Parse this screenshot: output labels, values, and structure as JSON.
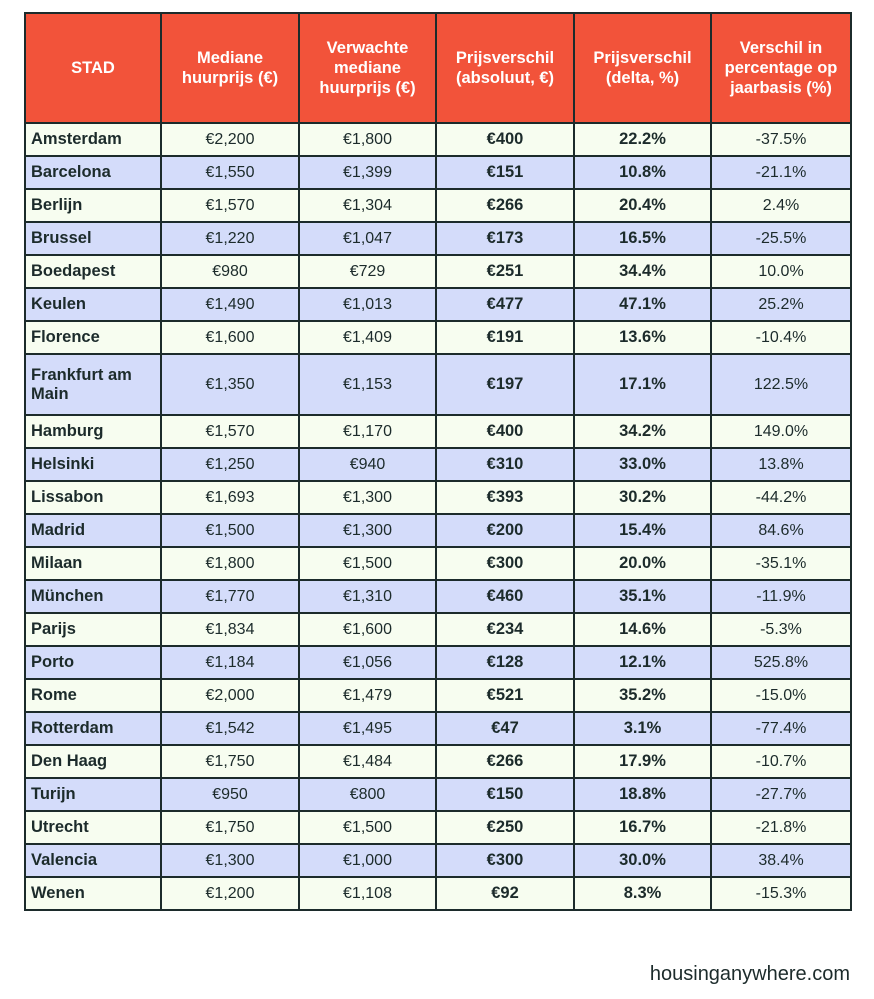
{
  "table": {
    "headers": [
      "STAD",
      "Mediane huurprijs (€)",
      "Verwachte mediane huurprijs (€)",
      "Prijsverschil (absoluut, €)",
      "Prijsverschil (delta, %)",
      "Verschil in percentage op jaarbasis (%)"
    ],
    "rows": [
      [
        "Amsterdam",
        "€2,200",
        "€1,800",
        "€400",
        "22.2%",
        "-37.5%"
      ],
      [
        "Barcelona",
        "€1,550",
        "€1,399",
        "€151",
        "10.8%",
        "-21.1%"
      ],
      [
        "Berlijn",
        "€1,570",
        "€1,304",
        "€266",
        "20.4%",
        "2.4%"
      ],
      [
        "Brussel",
        "€1,220",
        "€1,047",
        "€173",
        "16.5%",
        "-25.5%"
      ],
      [
        "Boedapest",
        "€980",
        "€729",
        "€251",
        "34.4%",
        "10.0%"
      ],
      [
        "Keulen",
        "€1,490",
        "€1,013",
        "€477",
        "47.1%",
        "25.2%"
      ],
      [
        "Florence",
        "€1,600",
        "€1,409",
        "€191",
        "13.6%",
        "-10.4%"
      ],
      [
        "Frankfurt am Main",
        "€1,350",
        "€1,153",
        "€197",
        "17.1%",
        "122.5%"
      ],
      [
        "Hamburg",
        "€1,570",
        "€1,170",
        "€400",
        "34.2%",
        "149.0%"
      ],
      [
        "Helsinki",
        "€1,250",
        "€940",
        "€310",
        "33.0%",
        "13.8%"
      ],
      [
        "Lissabon",
        "€1,693",
        "€1,300",
        "€393",
        "30.2%",
        "-44.2%"
      ],
      [
        "Madrid",
        "€1,500",
        "€1,300",
        "€200",
        "15.4%",
        "84.6%"
      ],
      [
        "Milaan",
        "€1,800",
        "€1,500",
        "€300",
        "20.0%",
        "-35.1%"
      ],
      [
        "München",
        "€1,770",
        "€1,310",
        "€460",
        "35.1%",
        "-11.9%"
      ],
      [
        "Parijs",
        "€1,834",
        "€1,600",
        "€234",
        "14.6%",
        "-5.3%"
      ],
      [
        "Porto",
        "€1,184",
        "€1,056",
        "€128",
        "12.1%",
        "525.8%"
      ],
      [
        "Rome",
        "€2,000",
        "€1,479",
        "€521",
        "35.2%",
        "-15.0%"
      ],
      [
        "Rotterdam",
        "€1,542",
        "€1,495",
        "€47",
        "3.1%",
        "-77.4%"
      ],
      [
        "Den Haag",
        "€1,750",
        "€1,484",
        "€266",
        "17.9%",
        "-10.7%"
      ],
      [
        "Turijn",
        "€950",
        "€800",
        "€150",
        "18.8%",
        "-27.7%"
      ],
      [
        "Utrecht",
        "€1,750",
        "€1,500",
        "€250",
        "16.7%",
        "-21.8%"
      ],
      [
        "Valencia",
        "€1,300",
        "€1,000",
        "€300",
        "30.0%",
        "38.4%"
      ],
      [
        "Wenen",
        "€1,200",
        "€1,108",
        "€92",
        "8.3%",
        "-15.3%"
      ]
    ]
  },
  "credit": "housinganywhere.com",
  "colors": {
    "header_bg": "#f2533a",
    "row_light": "#f7fdf0",
    "row_blue": "#d4dcfa",
    "border": "#1c2b2b"
  }
}
